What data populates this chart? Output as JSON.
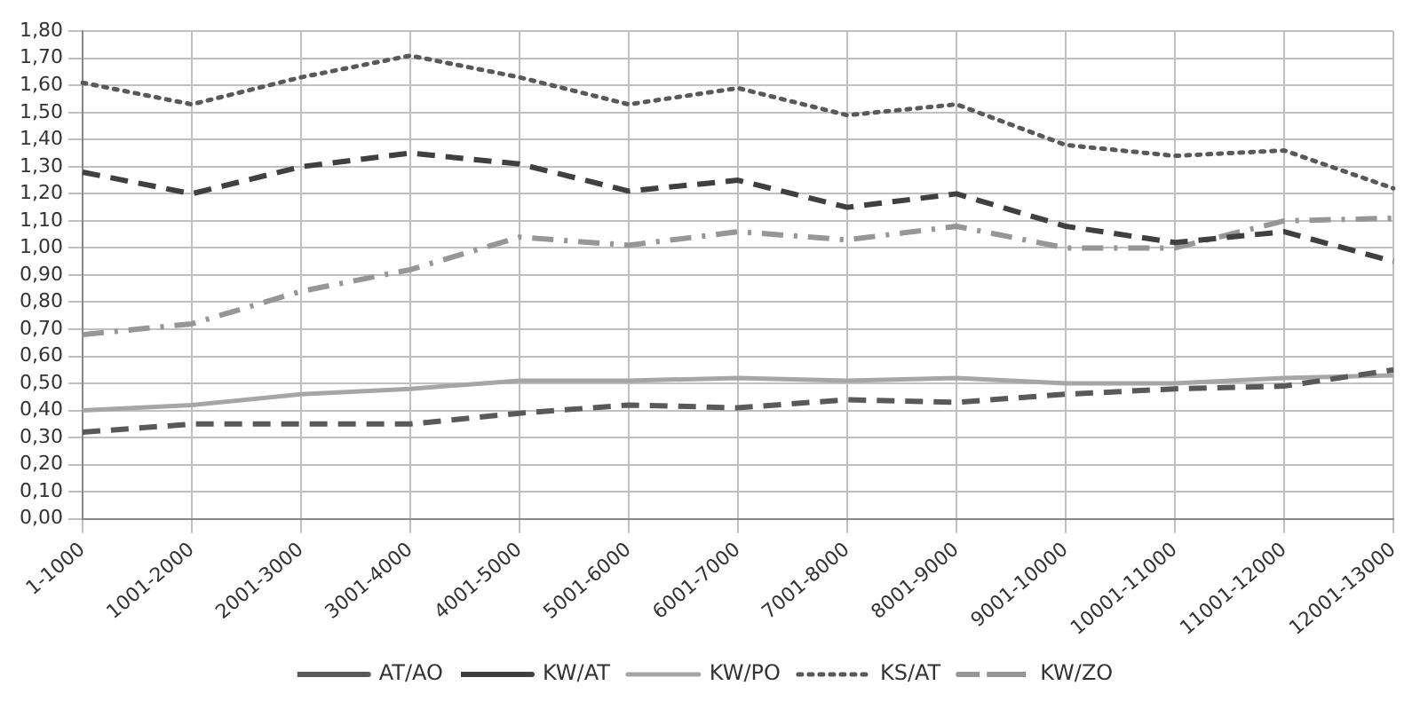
{
  "chart_data": {
    "type": "line",
    "categories": [
      "1-1000",
      "1001-2000",
      "2001-3000",
      "3001-4000",
      "4001-5000",
      "5001-6000",
      "6001-7000",
      "7001-8000",
      "8001-9000",
      "9001-10000",
      "10001-11000",
      "11001-12000",
      "12001-13000"
    ],
    "series": [
      {
        "name": "AT/AO",
        "color": "#595959",
        "line_style": "dashed",
        "values": [
          0.32,
          0.35,
          0.35,
          0.35,
          0.39,
          0.42,
          0.41,
          0.44,
          0.43,
          0.46,
          0.48,
          0.49,
          0.55
        ]
      },
      {
        "name": "KW/AT",
        "color": "#404040",
        "line_style": "dashed",
        "values": [
          1.28,
          1.2,
          1.3,
          1.35,
          1.31,
          1.21,
          1.25,
          1.15,
          1.2,
          1.08,
          1.02,
          1.06,
          0.95
        ]
      },
      {
        "name": "KW/PO",
        "color": "#a6a6a6",
        "line_style": "solid",
        "values": [
          0.4,
          0.42,
          0.46,
          0.48,
          0.51,
          0.51,
          0.52,
          0.51,
          0.52,
          0.5,
          0.5,
          0.52,
          0.53
        ]
      },
      {
        "name": "KS/AT",
        "color": "#595959",
        "line_style": "dotted",
        "values": [
          1.61,
          1.53,
          1.63,
          1.71,
          1.63,
          1.53,
          1.59,
          1.49,
          1.53,
          1.38,
          1.34,
          1.36,
          1.22
        ]
      },
      {
        "name": "KW/ZO",
        "color": "#969696",
        "line_style": "dashdot",
        "values": [
          0.68,
          0.72,
          0.84,
          0.92,
          1.04,
          1.01,
          1.06,
          1.03,
          1.08,
          1.0,
          1.0,
          1.1,
          1.11
        ]
      }
    ],
    "ylim": [
      0,
      1.8
    ],
    "yticks": [
      {
        "value": 0,
        "label": "0,00"
      },
      {
        "value": 0.1,
        "label": "0,10"
      },
      {
        "value": 0.2,
        "label": "0,20"
      },
      {
        "value": 0.3,
        "label": "0,30"
      },
      {
        "value": 0.4,
        "label": "0,40"
      },
      {
        "value": 0.5,
        "label": "0,50"
      },
      {
        "value": 0.6,
        "label": "0,60"
      },
      {
        "value": 0.7,
        "label": "0,70"
      },
      {
        "value": 0.8,
        "label": "0,80"
      },
      {
        "value": 0.9,
        "label": "0,90"
      },
      {
        "value": 1.0,
        "label": "1,00"
      },
      {
        "value": 1.1,
        "label": "1,10"
      },
      {
        "value": 1.2,
        "label": "1,20"
      },
      {
        "value": 1.3,
        "label": "1,30"
      },
      {
        "value": 1.4,
        "label": "1,40"
      },
      {
        "value": 1.5,
        "label": "1,50"
      },
      {
        "value": 1.6,
        "label": "1,60"
      },
      {
        "value": 1.7,
        "label": "1,70"
      },
      {
        "value": 1.8,
        "label": "1,80"
      }
    ],
    "grid": true,
    "legend": "bottom",
    "marker": "none"
  }
}
